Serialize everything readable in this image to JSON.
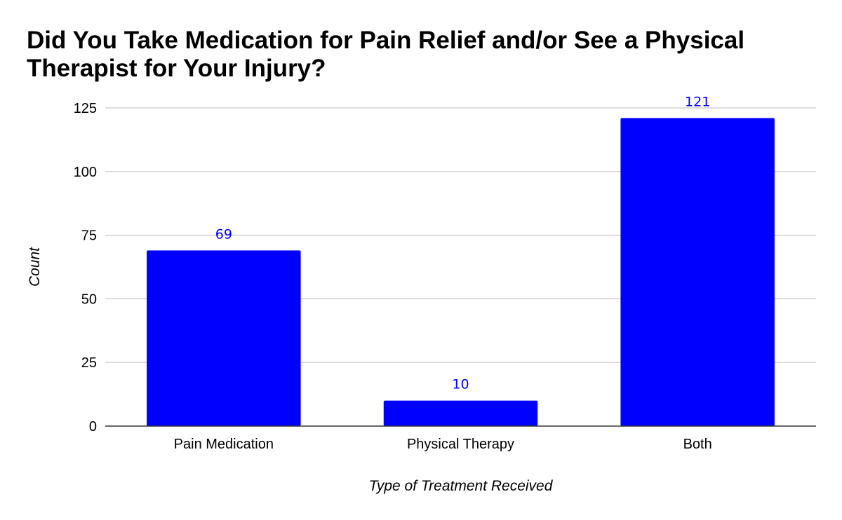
{
  "chart_data": {
    "type": "bar",
    "title": "Did You Take Medication for Pain Relief and/or See a Physical Therapist for Your Injury?",
    "xlabel": "Type of Treatment Received",
    "ylabel": "Count",
    "categories": [
      "Pain Medication",
      "Physical Therapy",
      "Both"
    ],
    "values": [
      69,
      10,
      121
    ],
    "data_labels": [
      "69",
      "10",
      "121"
    ],
    "ylim": [
      0,
      125
    ],
    "yticks": [
      0,
      25,
      50,
      75,
      100,
      125
    ],
    "ytick_labels": [
      "0",
      "25",
      "50",
      "75",
      "100",
      "125"
    ],
    "grid": true,
    "legend": "none",
    "colors": {
      "bar": "#0000ff",
      "data_label": "#0000ff",
      "grid": "#c8c8c8",
      "axis": "#333333"
    }
  }
}
